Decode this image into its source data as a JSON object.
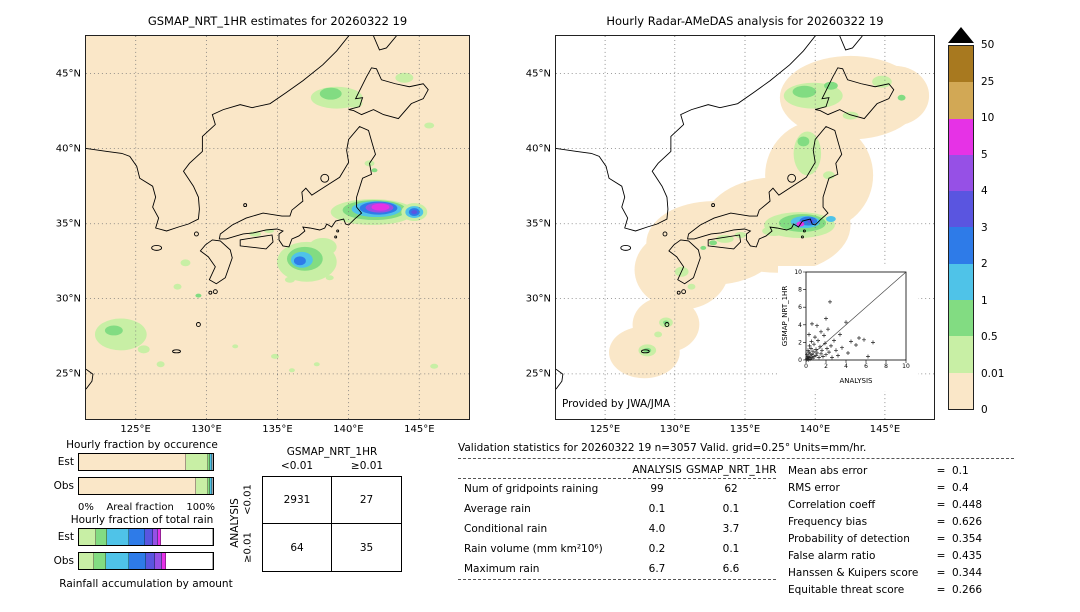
{
  "page": {
    "background": "#ffffff"
  },
  "legend": {
    "values_top_to_bottom": [
      "50",
      "25",
      "10",
      "5",
      "4",
      "3",
      "2",
      "1",
      "0.5",
      "0.01",
      "0"
    ],
    "colors_top_to_bottom": [
      "#A8791F",
      "#D2A855",
      "#E632E6",
      "#9650E6",
      "#5A55E0",
      "#2E7BE8",
      "#4FC3E8",
      "#82DC82",
      "#C8EFA5",
      "#FAE7C8"
    ],
    "overflow_marker_color": "#000000"
  },
  "chart_data": [
    {
      "type": "heatmap",
      "title": "GSMAP_NRT_1HR estimates for 20260322 19",
      "x_ticks": [
        "125°E",
        "130°E",
        "135°E",
        "140°E",
        "145°E"
      ],
      "y_ticks": [
        "45°N",
        "40°N",
        "35°N",
        "30°N",
        "25°N"
      ],
      "units": "mm/hr",
      "colorbar": {
        "values_top_to_bottom": [
          "50",
          "25",
          "10",
          "5",
          "4",
          "3",
          "2",
          "1",
          "0.5",
          "0.01",
          "0"
        ],
        "colors_top_to_bottom": [
          "#A8791F",
          "#D2A855",
          "#E632E6",
          "#9650E6",
          "#5A55E0",
          "#2E7BE8",
          "#4FC3E8",
          "#82DC82",
          "#C8EFA5",
          "#FAE7C8"
        ]
      },
      "description": "Satellite precipitation estimate over Japan; heaviest cell (magenta band) south of central Honshu near 139E/35N, secondary cyan-blue cores south of Shikoku and east of Kanto, light green showers over Hokkaido and the southwest islands"
    },
    {
      "type": "heatmap",
      "title": "Hourly Radar-AMeDAS analysis for 20260322 19",
      "x_ticks": [
        "125°E",
        "130°E",
        "135°E",
        "140°E",
        "145°E"
      ],
      "y_ticks": [
        "45°N",
        "40°N",
        "35°N",
        "30°N",
        "25°N"
      ],
      "units": "mm/hr",
      "credit": "Provided by JWA/JMA",
      "description": "Radar analysis valid only inside coverage area (cream blob along archipelago, white = no data); rain cores near Kanto coast with small magenta/blue maxima, light green over Hokkaido, Tohoku coast, Inland Sea and southwest islands"
    },
    {
      "type": "scatter",
      "xlabel": "ANALYSIS",
      "ylabel": "GSMAP_NRT_1HR",
      "xlim": [
        0,
        10
      ],
      "ylim": [
        0,
        10
      ],
      "tick_labels": [
        "0",
        "2",
        "4",
        "6",
        "8",
        "10"
      ],
      "diagonal": true,
      "points": [
        [
          0.05,
          0.05
        ],
        [
          0.1,
          0.2
        ],
        [
          0.1,
          0.6
        ],
        [
          0.15,
          0.1
        ],
        [
          0.2,
          0.4
        ],
        [
          0.2,
          1.1
        ],
        [
          0.25,
          0.05
        ],
        [
          0.3,
          0.3
        ],
        [
          0.3,
          0.9
        ],
        [
          0.3,
          2.9
        ],
        [
          0.35,
          1.6
        ],
        [
          0.4,
          0.1
        ],
        [
          0.4,
          0.7
        ],
        [
          0.5,
          0.3
        ],
        [
          0.5,
          1.3
        ],
        [
          0.55,
          2.1
        ],
        [
          0.6,
          0.6
        ],
        [
          0.6,
          4.1
        ],
        [
          0.7,
          0.2
        ],
        [
          0.7,
          1.0
        ],
        [
          0.8,
          0.4
        ],
        [
          0.8,
          1.8
        ],
        [
          0.9,
          2.6
        ],
        [
          1.0,
          0.5
        ],
        [
          1.0,
          1.2
        ],
        [
          1.1,
          0.8
        ],
        [
          1.1,
          3.9
        ],
        [
          1.2,
          2.2
        ],
        [
          1.3,
          0.3
        ],
        [
          1.4,
          1.5
        ],
        [
          1.5,
          0.7
        ],
        [
          1.5,
          3.2
        ],
        [
          1.6,
          1.1
        ],
        [
          1.7,
          0.4
        ],
        [
          1.8,
          2.8
        ],
        [
          1.9,
          1.9
        ],
        [
          2.0,
          0.6
        ],
        [
          2.0,
          4.7
        ],
        [
          2.1,
          1.3
        ],
        [
          2.2,
          3.5
        ],
        [
          2.3,
          0.9
        ],
        [
          2.4,
          6.6
        ],
        [
          2.5,
          1.6
        ],
        [
          2.6,
          0.3
        ],
        [
          2.8,
          2.2
        ],
        [
          3.0,
          1.1
        ],
        [
          3.2,
          0.5
        ],
        [
          3.4,
          2.9
        ],
        [
          3.6,
          1.4
        ],
        [
          4.0,
          4.3
        ],
        [
          4.2,
          0.8
        ],
        [
          4.5,
          2.1
        ],
        [
          5.0,
          1.7
        ],
        [
          5.3,
          2.5
        ],
        [
          5.8,
          2.3
        ],
        [
          6.2,
          0.4
        ],
        [
          6.7,
          2.0
        ]
      ]
    },
    {
      "type": "bar",
      "title": "Hourly fraction by occurence",
      "orientation": "horizontal-stacked",
      "categories": [
        "Est",
        "Obs"
      ],
      "xlabel": "Areal fraction",
      "x_range_labels": [
        "0%",
        "100%"
      ],
      "series": [
        {
          "name": "Est",
          "segments": [
            {
              "color": "#FAE7C8",
              "pct": 80
            },
            {
              "color": "#C8EFA5",
              "pct": 16
            },
            {
              "color": "#82DC82",
              "pct": 2
            },
            {
              "color": "#4FC3E8",
              "pct": 1
            },
            {
              "color": "#FFFFFF",
              "pct": 1
            }
          ]
        },
        {
          "name": "Obs",
          "segments": [
            {
              "color": "#FAE7C8",
              "pct": 87
            },
            {
              "color": "#C8EFA5",
              "pct": 9
            },
            {
              "color": "#82DC82",
              "pct": 2
            },
            {
              "color": "#4FC3E8",
              "pct": 1
            },
            {
              "color": "#FFFFFF",
              "pct": 1
            }
          ]
        }
      ]
    },
    {
      "type": "bar",
      "title": "Hourly fraction of total rain",
      "orientation": "horizontal-stacked",
      "categories": [
        "Est",
        "Obs"
      ],
      "xlabel": "Rainfall accumulation by amount",
      "series": [
        {
          "name": "Est",
          "segments": [
            {
              "color": "#C8EFA5",
              "pct": 13
            },
            {
              "color": "#82DC82",
              "pct": 8
            },
            {
              "color": "#4FC3E8",
              "pct": 16
            },
            {
              "color": "#2E7BE8",
              "pct": 12
            },
            {
              "color": "#5A55E0",
              "pct": 6
            },
            {
              "color": "#9650E6",
              "pct": 4
            },
            {
              "color": "#E632E6",
              "pct": 2
            },
            {
              "color": "#FFFFFF",
              "pct": 39
            }
          ]
        },
        {
          "name": "Obs",
          "segments": [
            {
              "color": "#C8EFA5",
              "pct": 11
            },
            {
              "color": "#82DC82",
              "pct": 9
            },
            {
              "color": "#4FC3E8",
              "pct": 17
            },
            {
              "color": "#2E7BE8",
              "pct": 13
            },
            {
              "color": "#5A55E0",
              "pct": 7
            },
            {
              "color": "#9650E6",
              "pct": 5
            },
            {
              "color": "#E632E6",
              "pct": 3
            },
            {
              "color": "#FFFFFF",
              "pct": 35
            }
          ]
        }
      ]
    },
    {
      "type": "table",
      "title": "GSMAP_NRT_1HR",
      "row_group_label": "ANALYSIS",
      "col_labels": [
        "<0.01",
        "≥0.01"
      ],
      "row_labels": [
        "<0.01",
        "≥0.01"
      ],
      "cells": [
        [
          "2931",
          "27"
        ],
        [
          "64",
          "35"
        ]
      ]
    },
    {
      "type": "table",
      "title": "Validation statistics for 20260322 19  n=3057 Valid. grid=0.25° Units=mm/hr.",
      "columns": [
        "ANALYSIS",
        "GSMAP_NRT_1HR"
      ],
      "eq": "=",
      "rows": [
        {
          "label": "Num of gridpoints raining",
          "values": [
            "99",
            "62"
          ]
        },
        {
          "label": "Average rain",
          "values": [
            "0.1",
            "0.1"
          ]
        },
        {
          "label": "Conditional rain",
          "values": [
            "4.0",
            "3.7"
          ]
        },
        {
          "label": "Rain volume (mm km²10⁶)",
          "values": [
            "0.2",
            "0.1"
          ]
        },
        {
          "label": "Maximum rain",
          "values": [
            "6.7",
            "6.6"
          ]
        }
      ],
      "scores": [
        {
          "label": "Mean abs error",
          "value": "0.1"
        },
        {
          "label": "RMS error",
          "value": "0.4"
        },
        {
          "label": "Correlation coeff",
          "value": "0.448"
        },
        {
          "label": "Frequency bias",
          "value": "0.626"
        },
        {
          "label": "Probability of detection",
          "value": "0.354"
        },
        {
          "label": "False alarm ratio",
          "value": "0.435"
        },
        {
          "label": "Hanssen & Kuipers score",
          "value": "0.344"
        },
        {
          "label": "Equitable threat score",
          "value": "0.266"
        }
      ]
    }
  ]
}
